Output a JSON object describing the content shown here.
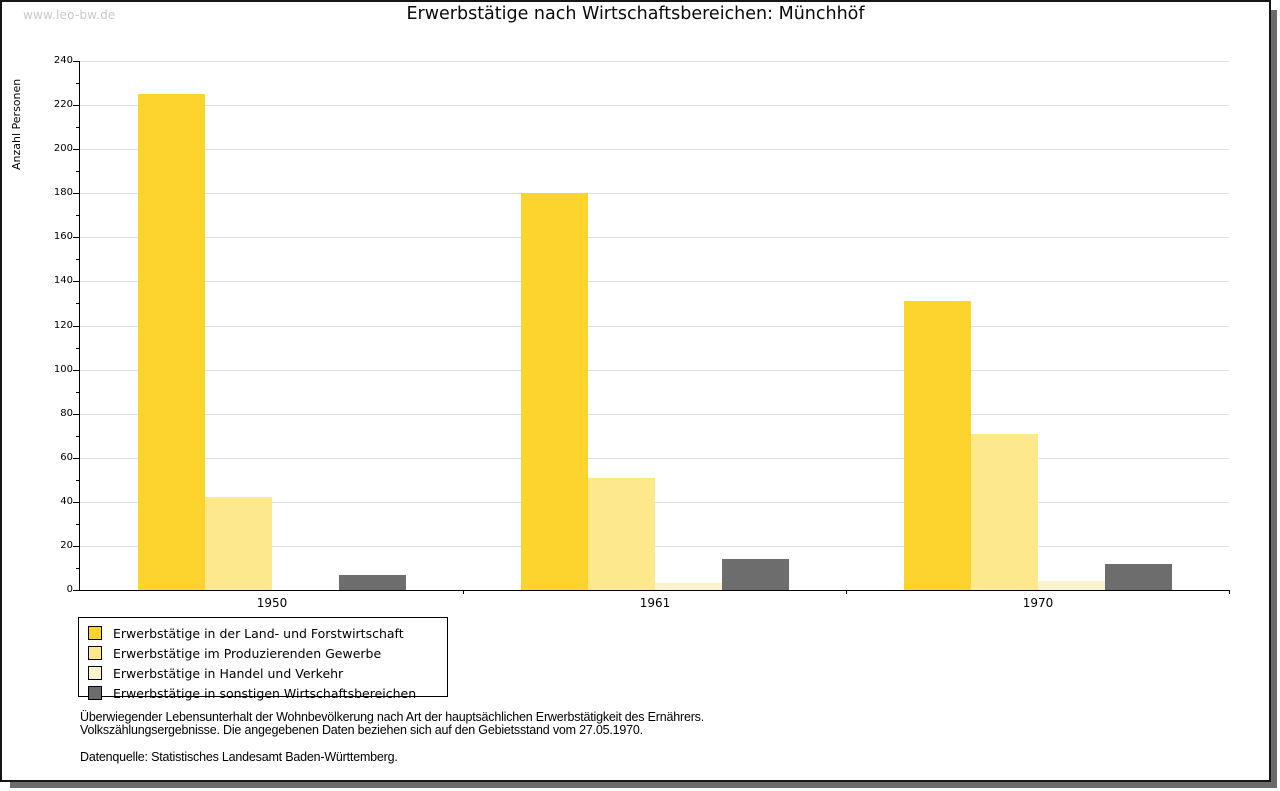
{
  "watermark": "www.leo-bw.de",
  "title": "Erwerbstätige nach Wirtschaftsbereichen: Münchhöf",
  "chart_data": {
    "type": "bar",
    "title": "Erwerbstätige nach Wirtschaftsbereichen: Münchhöf",
    "xlabel": "",
    "ylabel": "Anzahl Personen",
    "ylim": [
      0,
      240
    ],
    "ytick_major": 20,
    "ytick_minor": 10,
    "grid": true,
    "legend_position": "bottom-left",
    "categories": [
      "1950",
      "1961",
      "1970"
    ],
    "series": [
      {
        "name": "Erwerbstätige in der Land- und Forstwirtschaft",
        "color": "#fdd42e",
        "values": [
          225,
          180,
          131
        ]
      },
      {
        "name": "Erwerbstätige im Produzierenden Gewerbe",
        "color": "#fde98b",
        "values": [
          42,
          51,
          71
        ]
      },
      {
        "name": "Erwerbstätige in Handel und Verkehr",
        "color": "#fbf3cd",
        "values": [
          0,
          3,
          4
        ]
      },
      {
        "name": "Erwerbstätige in sonstigen Wirtschaftsbereichen",
        "color": "#6d6d6d",
        "values": [
          7,
          14,
          12
        ]
      }
    ]
  },
  "footer": {
    "line1": "Überwiegender Lebensunterhalt der Wohnbevölkerung nach Art der hauptsächlichen Erwerbstätigkeit des Ernährers.",
    "line2": "Volkszählungsergebnisse. Die angegebenen Daten beziehen sich auf den Gebietsstand vom 27.05.1970.",
    "source": "Datenquelle: Statistisches Landesamt Baden-Württemberg."
  },
  "colors": {
    "grid": "#e0e0e0",
    "axis": "#000000",
    "watermark": "#c9c9c9",
    "frame_border": "#161616",
    "frame_shadow": "#6b6b6b"
  }
}
